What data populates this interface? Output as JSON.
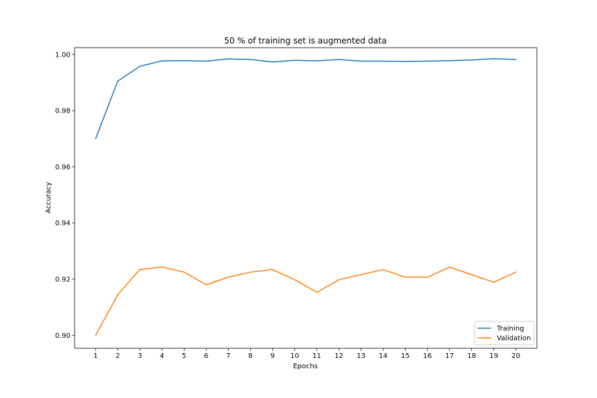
{
  "chart_data": {
    "type": "line",
    "title": "50 % of training set is augmented data",
    "xlabel": "Epochs",
    "ylabel": "Accuracy",
    "x": [
      1,
      2,
      3,
      4,
      5,
      6,
      7,
      8,
      9,
      10,
      11,
      12,
      13,
      14,
      15,
      16,
      17,
      18,
      19,
      20
    ],
    "xticks": [
      "1",
      "2",
      "3",
      "4",
      "5",
      "6",
      "7",
      "8",
      "9",
      "10",
      "11",
      "12",
      "13",
      "14",
      "15",
      "16",
      "17",
      "18",
      "19",
      "20"
    ],
    "yticks": [
      "0.90",
      "0.92",
      "0.94",
      "0.96",
      "0.98",
      "1.00"
    ],
    "ytick_values": [
      0.9,
      0.92,
      0.94,
      0.96,
      0.98,
      1.0
    ],
    "xlim": [
      0.05,
      20.95
    ],
    "ylim": [
      0.8954,
      1.0024
    ],
    "grid": false,
    "legend_position": "lower-right",
    "series": [
      {
        "name": "Training",
        "color": "#1f77b4",
        "values": [
          0.97,
          0.9905,
          0.9958,
          0.9977,
          0.9978,
          0.9976,
          0.9984,
          0.9982,
          0.9973,
          0.9979,
          0.9977,
          0.9982,
          0.9976,
          0.9976,
          0.9975,
          0.9976,
          0.9978,
          0.998,
          0.9985,
          0.9982
        ]
      },
      {
        "name": "Validation",
        "color": "#ff7f0e",
        "values": [
          0.9,
          0.9145,
          0.9234,
          0.9243,
          0.9225,
          0.918,
          0.9207,
          0.9225,
          0.9234,
          0.9198,
          0.9153,
          0.9198,
          0.9216,
          0.9234,
          0.9207,
          0.9207,
          0.9243,
          0.9216,
          0.9189,
          0.9225
        ]
      }
    ]
  }
}
